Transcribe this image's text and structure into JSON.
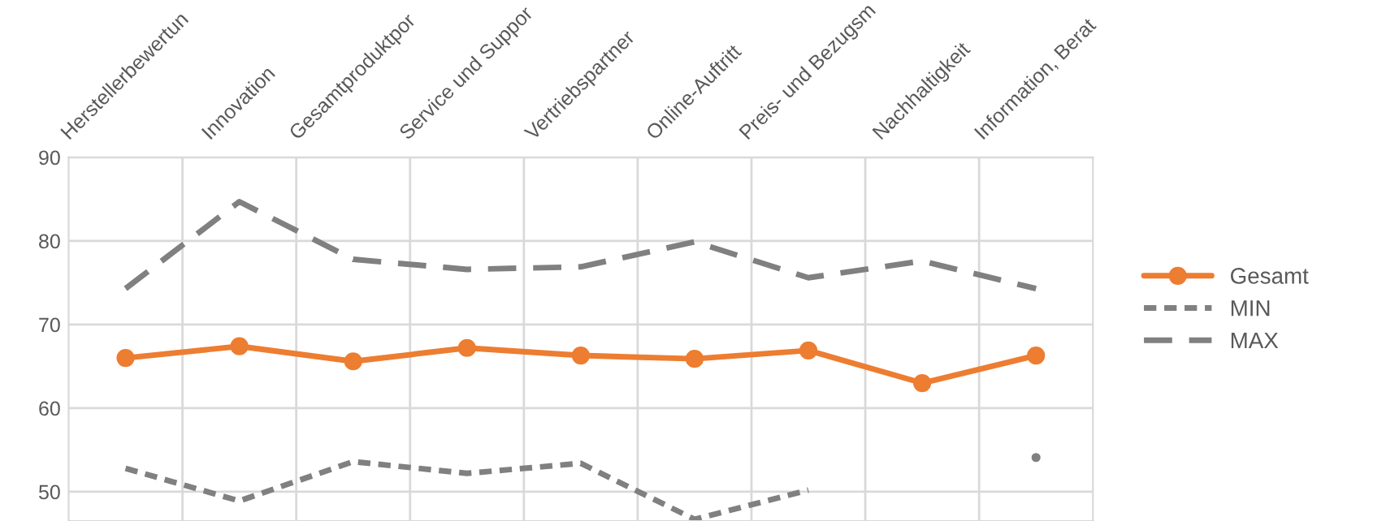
{
  "chart_data": {
    "type": "line",
    "categories": [
      "Herstellerbewertun",
      "Innovation",
      "Gesamtproduktpor",
      "Service und Suppor",
      "Vertriebspartner",
      "Online-Auftritt",
      "Preis- und Bezugsm",
      "Nachhaltigkeit",
      "Information, Berat"
    ],
    "series": [
      {
        "name": "Gesamt",
        "color": "#ed7d31",
        "marker": "circle",
        "line_style": "solid",
        "values": [
          66.0,
          67.4,
          65.6,
          67.2,
          66.3,
          65.9,
          66.9,
          63.0,
          66.3
        ]
      },
      {
        "name": "MIN",
        "color": "#808080",
        "marker": "none",
        "line_style": "dotted",
        "values": [
          52.8,
          48.9,
          53.6,
          52.2,
          53.4,
          46.7,
          50.2,
          null,
          54.1
        ]
      },
      {
        "name": "MAX",
        "color": "#808080",
        "marker": "none",
        "line_style": "dashed",
        "values": [
          74.3,
          84.7,
          77.8,
          76.6,
          76.9,
          79.9,
          75.6,
          77.6,
          74.3
        ]
      }
    ],
    "ylim": [
      46.5,
      90
    ],
    "yticks": [
      50,
      60,
      70,
      80,
      90
    ],
    "grid": true,
    "legend": "right"
  }
}
